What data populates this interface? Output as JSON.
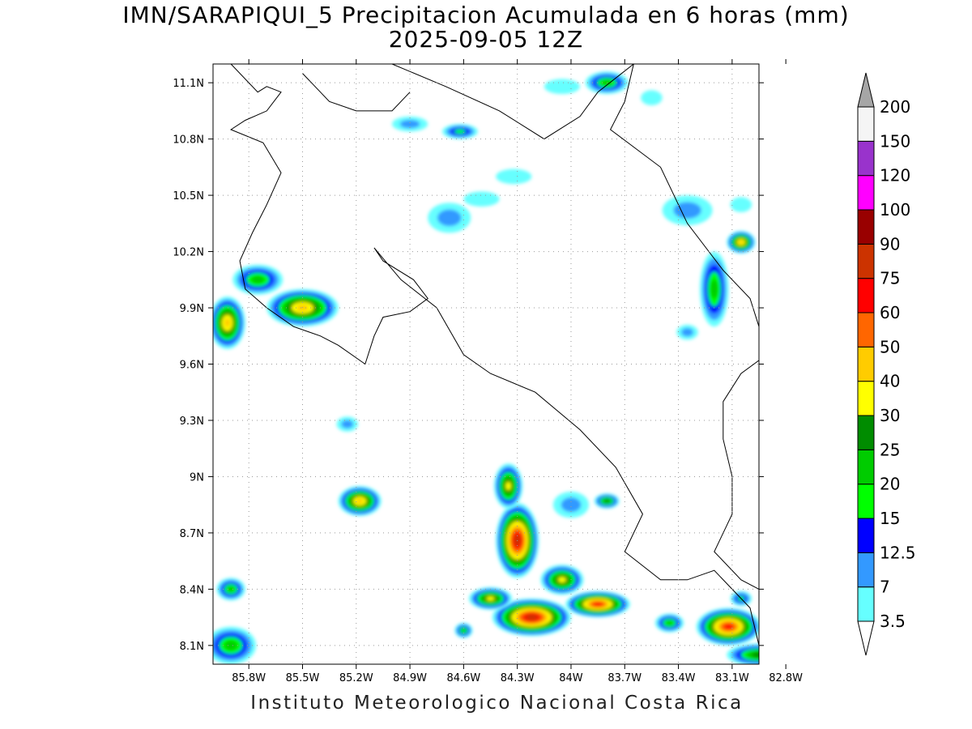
{
  "title": "IMN/SARAPIQUI_5 Precipitacion Acumulada en 6 horas (mm)",
  "subtitle": "2025-09-05 12Z",
  "footer": "Instituto Meteorologico Nacional Costa Rica",
  "map": {
    "lon_range": [
      -86.0,
      -82.95
    ],
    "lat_range": [
      8.0,
      11.2
    ],
    "lon_ticks": [
      {
        "value": -85.8,
        "label": "85.8W"
      },
      {
        "value": -85.5,
        "label": "85.5W"
      },
      {
        "value": -85.2,
        "label": "85.2W"
      },
      {
        "value": -84.9,
        "label": "84.9W"
      },
      {
        "value": -84.6,
        "label": "84.6W"
      },
      {
        "value": -84.3,
        "label": "84.3W"
      },
      {
        "value": -84.0,
        "label": "84W"
      },
      {
        "value": -83.7,
        "label": "83.7W"
      },
      {
        "value": -83.4,
        "label": "83.4W"
      },
      {
        "value": -83.1,
        "label": "83.1W"
      },
      {
        "value": -82.8,
        "label": "82.8W"
      }
    ],
    "lat_ticks": [
      {
        "value": 8.1,
        "label": "8.1N"
      },
      {
        "value": 8.4,
        "label": "8.4N"
      },
      {
        "value": 8.7,
        "label": "8.7N"
      },
      {
        "value": 9.0,
        "label": "9N"
      },
      {
        "value": 9.3,
        "label": "9.3N"
      },
      {
        "value": 9.6,
        "label": "9.6N"
      },
      {
        "value": 9.9,
        "label": "9.9N"
      },
      {
        "value": 10.2,
        "label": "10.2N"
      },
      {
        "value": 10.5,
        "label": "10.5N"
      },
      {
        "value": 10.8,
        "label": "10.8N"
      },
      {
        "value": 11.1,
        "label": "11.1N"
      }
    ],
    "grid": true,
    "gridColor": "#999999"
  },
  "colorbar": {
    "levels": [
      {
        "label": "3.5",
        "color": "#66ffff"
      },
      {
        "label": "7",
        "color": "#3399ff"
      },
      {
        "label": "12.5",
        "color": "#0000ff"
      },
      {
        "label": "15",
        "color": "#00ff00"
      },
      {
        "label": "20",
        "color": "#00cc00"
      },
      {
        "label": "25",
        "color": "#008c00"
      },
      {
        "label": "30",
        "color": "#ffff00"
      },
      {
        "label": "40",
        "color": "#ffcc00"
      },
      {
        "label": "50",
        "color": "#ff6600"
      },
      {
        "label": "60",
        "color": "#ff0000"
      },
      {
        "label": "75",
        "color": "#cc3300"
      },
      {
        "label": "90",
        "color": "#990000"
      },
      {
        "label": "100",
        "color": "#ff00ff"
      },
      {
        "label": "120",
        "color": "#9933cc"
      },
      {
        "label": "150",
        "color": "#f5f5f5"
      },
      {
        "label": "200",
        "color": "#a6a6a6"
      }
    ]
  },
  "rain_cells": [
    {
      "lon": -84.3,
      "lat": 8.66,
      "rx": 0.12,
      "ry": 0.2,
      "peak": 75
    },
    {
      "lon": -84.35,
      "lat": 8.95,
      "rx": 0.08,
      "ry": 0.12,
      "peak": 30
    },
    {
      "lon": -84.22,
      "lat": 8.25,
      "rx": 0.22,
      "ry": 0.1,
      "peak": 75
    },
    {
      "lon": -84.05,
      "lat": 8.45,
      "rx": 0.12,
      "ry": 0.08,
      "peak": 30
    },
    {
      "lon": -83.85,
      "lat": 8.32,
      "rx": 0.18,
      "ry": 0.07,
      "peak": 60
    },
    {
      "lon": -84.45,
      "lat": 8.35,
      "rx": 0.12,
      "ry": 0.06,
      "peak": 30
    },
    {
      "lon": -83.12,
      "lat": 8.2,
      "rx": 0.18,
      "ry": 0.1,
      "peak": 60
    },
    {
      "lon": -83.45,
      "lat": 8.22,
      "rx": 0.08,
      "ry": 0.05,
      "peak": 20
    },
    {
      "lon": -82.95,
      "lat": 8.05,
      "rx": 0.18,
      "ry": 0.06,
      "peak": 25
    },
    {
      "lon": -83.05,
      "lat": 8.35,
      "rx": 0.06,
      "ry": 0.04,
      "peak": 15
    },
    {
      "lon": -85.5,
      "lat": 9.9,
      "rx": 0.2,
      "ry": 0.1,
      "peak": 40
    },
    {
      "lon": -85.92,
      "lat": 9.82,
      "rx": 0.1,
      "ry": 0.14,
      "peak": 40
    },
    {
      "lon": -85.75,
      "lat": 10.05,
      "rx": 0.14,
      "ry": 0.08,
      "peak": 20
    },
    {
      "lon": -85.18,
      "lat": 8.87,
      "rx": 0.12,
      "ry": 0.08,
      "peak": 40
    },
    {
      "lon": -83.8,
      "lat": 8.87,
      "rx": 0.07,
      "ry": 0.04,
      "peak": 25
    },
    {
      "lon": -84.0,
      "lat": 8.85,
      "rx": 0.1,
      "ry": 0.07,
      "peak": 12
    },
    {
      "lon": -83.05,
      "lat": 10.25,
      "rx": 0.08,
      "ry": 0.06,
      "peak": 40
    },
    {
      "lon": -83.2,
      "lat": 10.0,
      "rx": 0.08,
      "ry": 0.2,
      "peak": 20
    },
    {
      "lon": -83.35,
      "lat": 10.42,
      "rx": 0.14,
      "ry": 0.08,
      "peak": 7
    },
    {
      "lon": -83.8,
      "lat": 11.1,
      "rx": 0.12,
      "ry": 0.06,
      "peak": 20
    },
    {
      "lon": -84.62,
      "lat": 10.84,
      "rx": 0.1,
      "ry": 0.04,
      "peak": 15
    },
    {
      "lon": -84.9,
      "lat": 10.88,
      "rx": 0.1,
      "ry": 0.04,
      "peak": 12
    },
    {
      "lon": -84.68,
      "lat": 10.38,
      "rx": 0.12,
      "ry": 0.08,
      "peak": 12
    },
    {
      "lon": -85.25,
      "lat": 9.28,
      "rx": 0.06,
      "ry": 0.04,
      "peak": 12
    },
    {
      "lon": -83.35,
      "lat": 9.77,
      "rx": 0.06,
      "ry": 0.04,
      "peak": 12
    },
    {
      "lon": -84.05,
      "lat": 11.08,
      "rx": 0.1,
      "ry": 0.04,
      "peak": 3.5
    },
    {
      "lon": -84.32,
      "lat": 10.6,
      "rx": 0.1,
      "ry": 0.04,
      "peak": 3.5
    },
    {
      "lon": -84.5,
      "lat": 10.48,
      "rx": 0.1,
      "ry": 0.04,
      "peak": 3.5
    },
    {
      "lon": -85.9,
      "lat": 8.1,
      "rx": 0.14,
      "ry": 0.1,
      "peak": 20
    },
    {
      "lon": -85.9,
      "lat": 8.4,
      "rx": 0.08,
      "ry": 0.06,
      "peak": 20
    },
    {
      "lon": -84.6,
      "lat": 8.18,
      "rx": 0.05,
      "ry": 0.04,
      "peak": 20
    },
    {
      "lon": -83.05,
      "lat": 10.45,
      "rx": 0.06,
      "ry": 0.04,
      "peak": 3.5
    },
    {
      "lon": -83.55,
      "lat": 11.02,
      "rx": 0.06,
      "ry": 0.04,
      "peak": 3.5
    }
  ],
  "coastlines": [
    [
      [
        -85.9,
        11.2
      ],
      [
        -85.75,
        11.05
      ],
      [
        -85.7,
        11.08
      ],
      [
        -85.62,
        11.05
      ],
      [
        -85.7,
        10.95
      ],
      [
        -85.82,
        10.9
      ],
      [
        -85.9,
        10.85
      ],
      [
        -85.72,
        10.78
      ],
      [
        -85.62,
        10.62
      ],
      [
        -85.7,
        10.45
      ],
      [
        -85.78,
        10.3
      ],
      [
        -85.85,
        10.15
      ],
      [
        -85.82,
        10.0
      ],
      [
        -85.7,
        9.9
      ],
      [
        -85.55,
        9.8
      ],
      [
        -85.4,
        9.75
      ],
      [
        -85.3,
        9.7
      ],
      [
        -85.15,
        9.6
      ],
      [
        -85.1,
        9.75
      ],
      [
        -85.05,
        9.85
      ],
      [
        -84.9,
        9.88
      ],
      [
        -84.8,
        9.95
      ],
      [
        -84.88,
        10.05
      ],
      [
        -85.05,
        10.15
      ],
      [
        -85.1,
        10.22
      ],
      [
        -84.95,
        10.05
      ],
      [
        -84.75,
        9.9
      ],
      [
        -84.6,
        9.65
      ],
      [
        -84.45,
        9.55
      ],
      [
        -84.2,
        9.45
      ],
      [
        -83.95,
        9.25
      ],
      [
        -83.75,
        9.05
      ],
      [
        -83.6,
        8.8
      ],
      [
        -83.7,
        8.6
      ],
      [
        -83.5,
        8.45
      ],
      [
        -83.35,
        8.45
      ],
      [
        -83.2,
        8.5
      ],
      [
        -83.1,
        8.4
      ],
      [
        -83.0,
        8.3
      ],
      [
        -82.95,
        8.1
      ],
      [
        -82.9,
        8.0
      ]
    ],
    [
      [
        -83.65,
        11.2
      ],
      [
        -83.7,
        11.0
      ],
      [
        -83.78,
        10.85
      ],
      [
        -83.5,
        10.65
      ],
      [
        -83.35,
        10.35
      ],
      [
        -83.15,
        10.1
      ],
      [
        -83.0,
        9.95
      ],
      [
        -82.95,
        9.8
      ]
    ],
    [
      [
        -82.95,
        9.62
      ],
      [
        -83.05,
        9.55
      ],
      [
        -83.15,
        9.4
      ],
      [
        -83.15,
        9.2
      ],
      [
        -83.1,
        9.0
      ],
      [
        -83.1,
        8.8
      ],
      [
        -83.2,
        8.6
      ],
      [
        -83.05,
        8.45
      ],
      [
        -82.95,
        8.4
      ]
    ],
    [
      [
        -85.0,
        11.2
      ],
      [
        -84.7,
        11.08
      ],
      [
        -84.4,
        10.95
      ],
      [
        -84.15,
        10.8
      ],
      [
        -83.95,
        10.92
      ],
      [
        -83.85,
        11.05
      ],
      [
        -83.65,
        11.2
      ]
    ],
    [
      [
        -85.5,
        11.15
      ],
      [
        -85.35,
        11.0
      ],
      [
        -85.2,
        10.95
      ],
      [
        -85.0,
        10.95
      ],
      [
        -84.9,
        11.05
      ]
    ]
  ]
}
